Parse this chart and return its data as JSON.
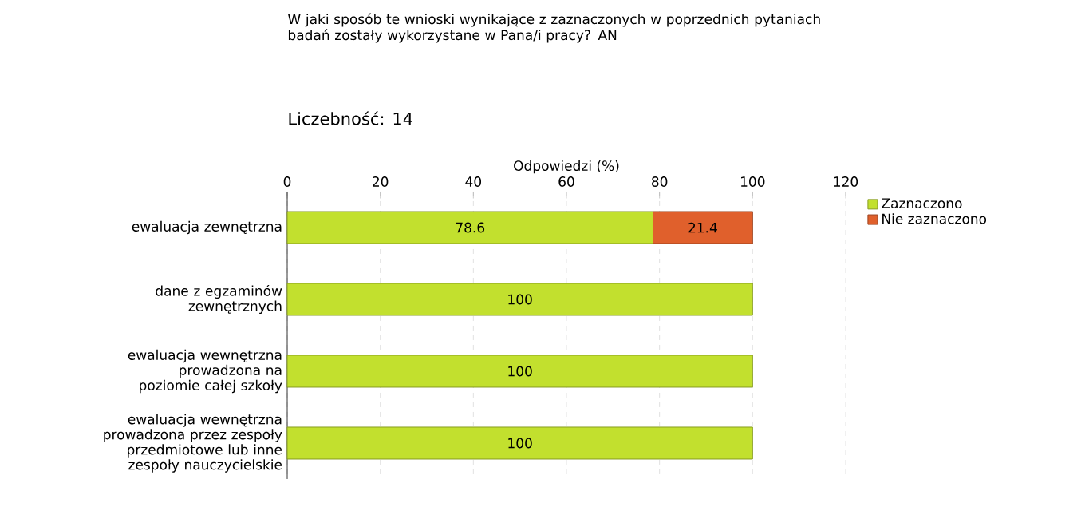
{
  "chart_data": {
    "type": "bar",
    "orientation": "horizontal",
    "stacked": true,
    "title": "W jaki sposób te wnioski wynikające z zaznaczonych w poprzednich pytaniach badań zostały wykorzystane w Pana/i pracy? AN",
    "subtitle": "Liczebność: 14",
    "xlabel": "Odpowiedzi (%)",
    "categories": [
      "ewaluacja zewnętrzna",
      "dane z egzaminów zewnętrznych",
      "ewaluacja wewnętrzna prowadzona na poziomie całej szkoły",
      "ewaluacja wewnętrzna prowadzona przez zespoły przedmiotowe lub inne zespoły nauczycielskie"
    ],
    "series": [
      {
        "name": "Zaznaczono",
        "color": "#c2e02e",
        "values": [
          78.6,
          100,
          100,
          100
        ]
      },
      {
        "name": "Nie zaznaczono",
        "color": "#e0602c",
        "values": [
          21.4,
          null,
          null,
          null
        ]
      }
    ],
    "xlim": [
      0,
      120
    ],
    "xticks": [
      0,
      20,
      40,
      60,
      80,
      100,
      120
    ],
    "grid": "x",
    "legend": "top right",
    "data_labels": true
  }
}
